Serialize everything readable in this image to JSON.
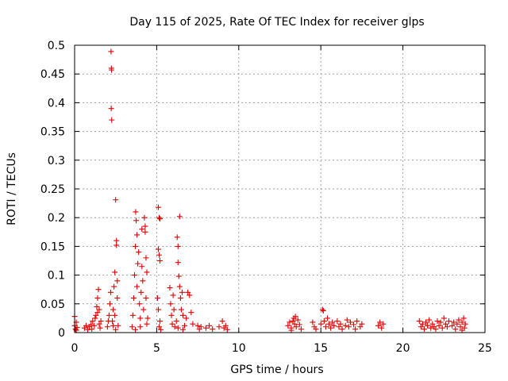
{
  "chart_data": {
    "type": "scatter",
    "title": "Day 115 of 2025, Rate Of TEC Index for receiver glps",
    "xlabel": "GPS time / hours",
    "ylabel": "ROTI / TECUs",
    "xlim": [
      0,
      25
    ],
    "ylim": [
      0,
      0.5
    ],
    "xticks": [
      0,
      5,
      10,
      15,
      20,
      25
    ],
    "yticks": [
      0,
      0.05,
      0.1,
      0.15,
      0.2,
      0.25,
      0.3,
      0.35,
      0.4,
      0.45,
      0.5
    ],
    "xtick_labels": [
      "0",
      "5",
      "10",
      "15",
      "20",
      "25"
    ],
    "ytick_labels": [
      "0",
      "0.05",
      "0.1",
      "0.15",
      "0.2",
      "0.25",
      "0.3",
      "0.35",
      "0.4",
      "0.45",
      "0.5"
    ],
    "grid": true,
    "marker": "+",
    "marker_color": "#e00000",
    "series": [
      {
        "name": "ROTI",
        "points": [
          [
            0.0,
            0.012
          ],
          [
            0.05,
            0.006
          ],
          [
            0.1,
            0.018
          ],
          [
            0.15,
            0.009
          ],
          [
            0.0,
            0.028
          ],
          [
            0.1,
            0.004
          ],
          [
            0.6,
            0.008
          ],
          [
            0.7,
            0.012
          ],
          [
            0.8,
            0.005
          ],
          [
            0.9,
            0.01
          ],
          [
            1.0,
            0.014
          ],
          [
            1.05,
            0.006
          ],
          [
            1.1,
            0.02
          ],
          [
            1.2,
            0.012
          ],
          [
            1.25,
            0.025
          ],
          [
            1.3,
            0.03
          ],
          [
            1.35,
            0.045
          ],
          [
            1.4,
            0.06
          ],
          [
            1.45,
            0.075
          ],
          [
            1.5,
            0.04
          ],
          [
            1.5,
            0.015
          ],
          [
            1.55,
            0.008
          ],
          [
            1.6,
            0.02
          ],
          [
            1.4,
            0.035
          ],
          [
            2.0,
            0.01
          ],
          [
            2.05,
            0.02
          ],
          [
            2.1,
            0.03
          ],
          [
            2.15,
            0.05
          ],
          [
            2.2,
            0.07
          ],
          [
            2.22,
            0.489
          ],
          [
            2.24,
            0.46
          ],
          [
            2.25,
            0.457
          ],
          [
            2.23,
            0.39
          ],
          [
            2.26,
            0.37
          ],
          [
            2.3,
            0.02
          ],
          [
            2.35,
            0.04
          ],
          [
            2.4,
            0.08
          ],
          [
            2.45,
            0.105
          ],
          [
            2.5,
            0.231
          ],
          [
            2.55,
            0.16
          ],
          [
            2.55,
            0.152
          ],
          [
            2.6,
            0.09
          ],
          [
            2.6,
            0.06
          ],
          [
            2.45,
            0.03
          ],
          [
            2.35,
            0.012
          ],
          [
            2.5,
            0.005
          ],
          [
            2.65,
            0.012
          ],
          [
            3.5,
            0.01
          ],
          [
            3.55,
            0.03
          ],
          [
            3.6,
            0.06
          ],
          [
            3.65,
            0.1
          ],
          [
            3.7,
            0.15
          ],
          [
            3.72,
            0.21
          ],
          [
            3.75,
            0.195
          ],
          [
            3.8,
            0.17
          ],
          [
            3.8,
            0.08
          ],
          [
            3.85,
            0.12
          ],
          [
            3.9,
            0.14
          ],
          [
            3.95,
            0.05
          ],
          [
            4.0,
            0.025
          ],
          [
            4.05,
            0.07
          ],
          [
            4.1,
            0.18
          ],
          [
            4.1,
            0.115
          ],
          [
            4.15,
            0.09
          ],
          [
            4.2,
            0.04
          ],
          [
            4.25,
            0.2
          ],
          [
            4.3,
            0.185
          ],
          [
            4.3,
            0.175
          ],
          [
            4.35,
            0.13
          ],
          [
            4.35,
            0.06
          ],
          [
            4.4,
            0.015
          ],
          [
            4.4,
            0.105
          ],
          [
            4.45,
            0.025
          ],
          [
            4.0,
            0.01
          ],
          [
            3.7,
            0.005
          ],
          [
            5.1,
            0.218
          ],
          [
            5.15,
            0.2
          ],
          [
            5.2,
            0.198
          ],
          [
            5.1,
            0.145
          ],
          [
            5.15,
            0.135
          ],
          [
            5.2,
            0.125
          ],
          [
            5.05,
            0.06
          ],
          [
            5.1,
            0.04
          ],
          [
            5.15,
            0.01
          ],
          [
            5.2,
            0.02
          ],
          [
            5.25,
            0.005
          ],
          [
            5.8,
            0.078
          ],
          [
            5.85,
            0.05
          ],
          [
            5.9,
            0.03
          ],
          [
            5.95,
            0.015
          ],
          [
            6.0,
            0.065
          ],
          [
            6.05,
            0.04
          ],
          [
            6.1,
            0.01
          ],
          [
            6.2,
            0.02
          ],
          [
            6.25,
            0.166
          ],
          [
            6.3,
            0.15
          ],
          [
            6.3,
            0.122
          ],
          [
            6.35,
            0.098
          ],
          [
            6.4,
            0.202
          ],
          [
            6.4,
            0.08
          ],
          [
            6.45,
            0.06
          ],
          [
            6.5,
            0.04
          ],
          [
            6.55,
            0.07
          ],
          [
            6.6,
            0.03
          ],
          [
            6.7,
            0.012
          ],
          [
            6.8,
            0.025
          ],
          [
            6.9,
            0.07
          ],
          [
            7.0,
            0.065
          ],
          [
            7.1,
            0.035
          ],
          [
            7.2,
            0.015
          ],
          [
            6.3,
            0.008
          ],
          [
            6.6,
            0.005
          ],
          [
            7.5,
            0.012
          ],
          [
            7.6,
            0.006
          ],
          [
            7.7,
            0.01
          ],
          [
            8.0,
            0.008
          ],
          [
            8.2,
            0.012
          ],
          [
            8.4,
            0.006
          ],
          [
            8.8,
            0.01
          ],
          [
            9.0,
            0.02
          ],
          [
            9.1,
            0.008
          ],
          [
            9.2,
            0.012
          ],
          [
            9.3,
            0.005
          ],
          [
            13.0,
            0.012
          ],
          [
            13.1,
            0.018
          ],
          [
            13.2,
            0.008
          ],
          [
            13.3,
            0.02
          ],
          [
            13.35,
            0.025
          ],
          [
            13.4,
            0.015
          ],
          [
            13.45,
            0.028
          ],
          [
            13.5,
            0.01
          ],
          [
            13.6,
            0.022
          ],
          [
            13.7,
            0.014
          ],
          [
            13.8,
            0.006
          ],
          [
            13.2,
            0.004
          ],
          [
            14.5,
            0.018
          ],
          [
            14.6,
            0.01
          ],
          [
            14.7,
            0.006
          ],
          [
            15.0,
            0.015
          ],
          [
            15.1,
            0.04
          ],
          [
            15.15,
            0.038
          ],
          [
            15.2,
            0.02
          ],
          [
            15.3,
            0.01
          ],
          [
            15.4,
            0.025
          ],
          [
            15.5,
            0.015
          ],
          [
            15.6,
            0.008
          ],
          [
            15.7,
            0.018
          ],
          [
            15.8,
            0.012
          ],
          [
            16.0,
            0.02
          ],
          [
            16.1,
            0.01
          ],
          [
            16.2,
            0.015
          ],
          [
            16.3,
            0.006
          ],
          [
            16.5,
            0.012
          ],
          [
            16.6,
            0.022
          ],
          [
            16.7,
            0.01
          ],
          [
            16.8,
            0.018
          ],
          [
            17.0,
            0.014
          ],
          [
            17.1,
            0.006
          ],
          [
            17.2,
            0.02
          ],
          [
            17.4,
            0.01
          ],
          [
            17.5,
            0.015
          ],
          [
            18.5,
            0.012
          ],
          [
            18.6,
            0.018
          ],
          [
            18.7,
            0.008
          ],
          [
            18.8,
            0.015
          ],
          [
            21.0,
            0.02
          ],
          [
            21.1,
            0.01
          ],
          [
            21.2,
            0.015
          ],
          [
            21.3,
            0.006
          ],
          [
            21.4,
            0.018
          ],
          [
            21.5,
            0.012
          ],
          [
            21.6,
            0.022
          ],
          [
            21.7,
            0.008
          ],
          [
            21.8,
            0.015
          ],
          [
            21.9,
            0.01
          ],
          [
            22.0,
            0.006
          ],
          [
            22.1,
            0.02
          ],
          [
            22.2,
            0.012
          ],
          [
            22.3,
            0.018
          ],
          [
            22.4,
            0.008
          ],
          [
            22.5,
            0.025
          ],
          [
            22.6,
            0.015
          ],
          [
            22.7,
            0.01
          ],
          [
            22.8,
            0.02
          ],
          [
            23.0,
            0.012
          ],
          [
            23.1,
            0.018
          ],
          [
            23.2,
            0.006
          ],
          [
            23.3,
            0.015
          ],
          [
            23.4,
            0.022
          ],
          [
            23.5,
            0.01
          ],
          [
            23.6,
            0.018
          ],
          [
            23.7,
            0.025
          ],
          [
            23.75,
            0.008
          ],
          [
            23.8,
            0.015
          ],
          [
            23.6,
            0.004
          ]
        ]
      }
    ]
  }
}
